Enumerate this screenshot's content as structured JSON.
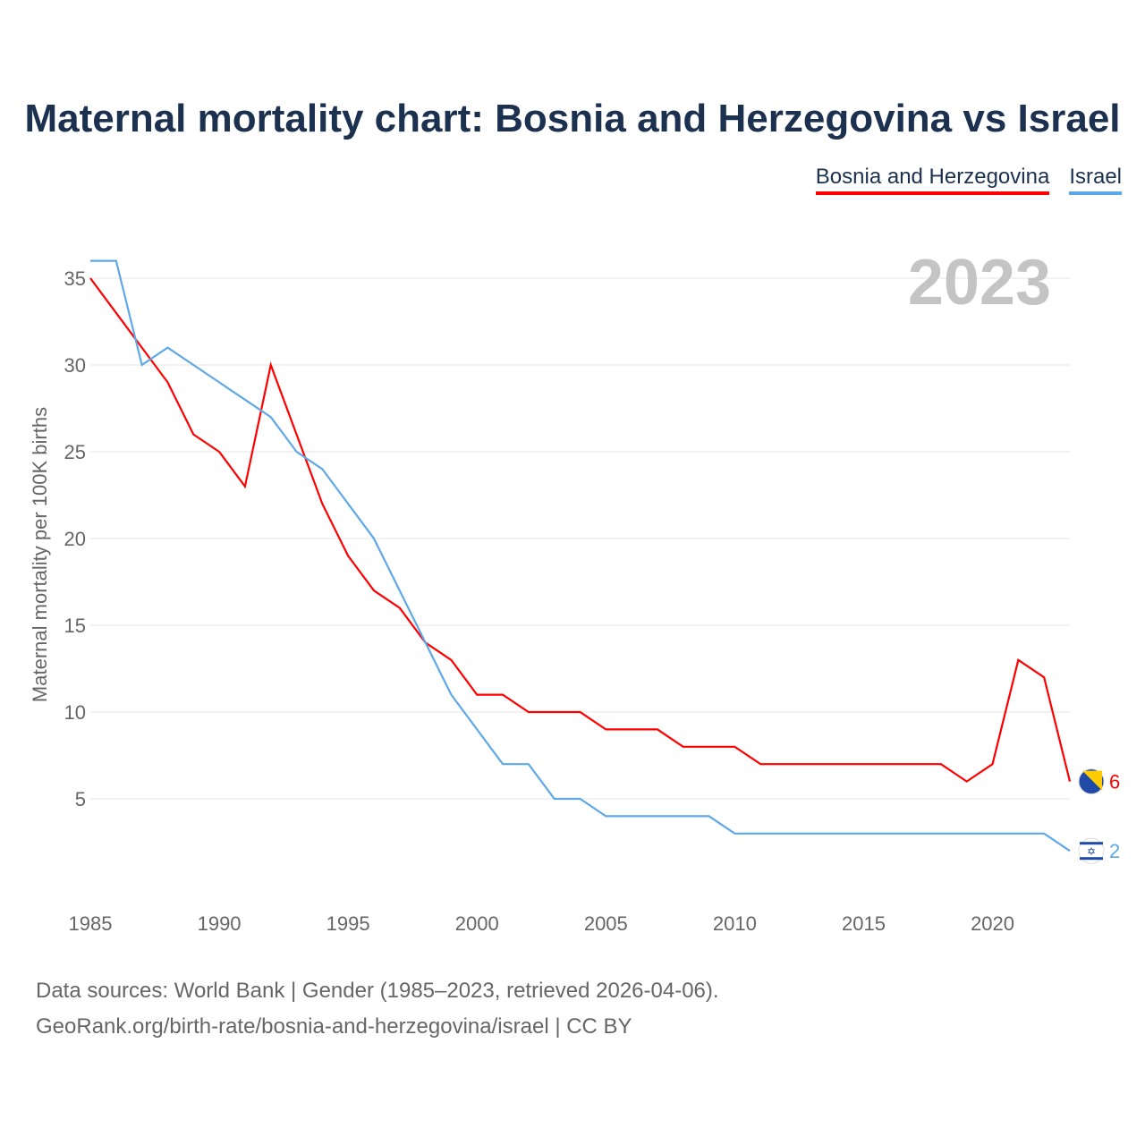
{
  "chart_data": {
    "type": "line",
    "title": "Maternal mortality chart: Bosnia and Herzegovina vs Israel",
    "ylabel": "Maternal mortality per 100K births",
    "xlabel": "",
    "year_label": "2023",
    "xlim": [
      1985,
      2023
    ],
    "ylim": [
      0,
      37
    ],
    "x_ticks": [
      1985,
      1990,
      1995,
      2000,
      2005,
      2010,
      2015,
      2020
    ],
    "y_ticks": [
      5,
      10,
      15,
      20,
      25,
      30,
      35
    ],
    "grid": true,
    "legend_position": "top-right",
    "x": [
      1985,
      1986,
      1987,
      1988,
      1989,
      1990,
      1991,
      1992,
      1993,
      1994,
      1995,
      1996,
      1997,
      1998,
      1999,
      2000,
      2001,
      2002,
      2003,
      2004,
      2005,
      2006,
      2007,
      2008,
      2009,
      2010,
      2011,
      2012,
      2013,
      2014,
      2015,
      2016,
      2017,
      2018,
      2019,
      2020,
      2021,
      2022,
      2023
    ],
    "series": [
      {
        "name": "Bosnia and Herzegovina",
        "color": "#ff0000",
        "end_label": "6",
        "values": [
          35,
          33,
          31,
          29,
          26,
          25,
          23,
          30,
          26,
          22,
          19,
          17,
          16,
          14,
          13,
          11,
          11,
          10,
          10,
          10,
          9,
          9,
          9,
          8,
          8,
          8,
          7,
          7,
          7,
          7,
          7,
          7,
          7,
          7,
          6,
          7,
          13,
          12,
          6
        ]
      },
      {
        "name": "Israel",
        "color": "#5ea8ea",
        "end_label": "2",
        "values": [
          36,
          36,
          30,
          31,
          30,
          29,
          28,
          27,
          25,
          24,
          22,
          20,
          17,
          14,
          11,
          9,
          7,
          7,
          5,
          5,
          4,
          4,
          4,
          4,
          4,
          3,
          3,
          3,
          3,
          3,
          3,
          3,
          3,
          3,
          3,
          3,
          3,
          3,
          2
        ]
      }
    ]
  },
  "source_line1": "Data sources: World Bank | Gender (1985–2023, retrieved 2026-04-06).",
  "source_line2": "GeoRank.org/birth-rate/bosnia-and-herzegovina/israel | CC BY"
}
